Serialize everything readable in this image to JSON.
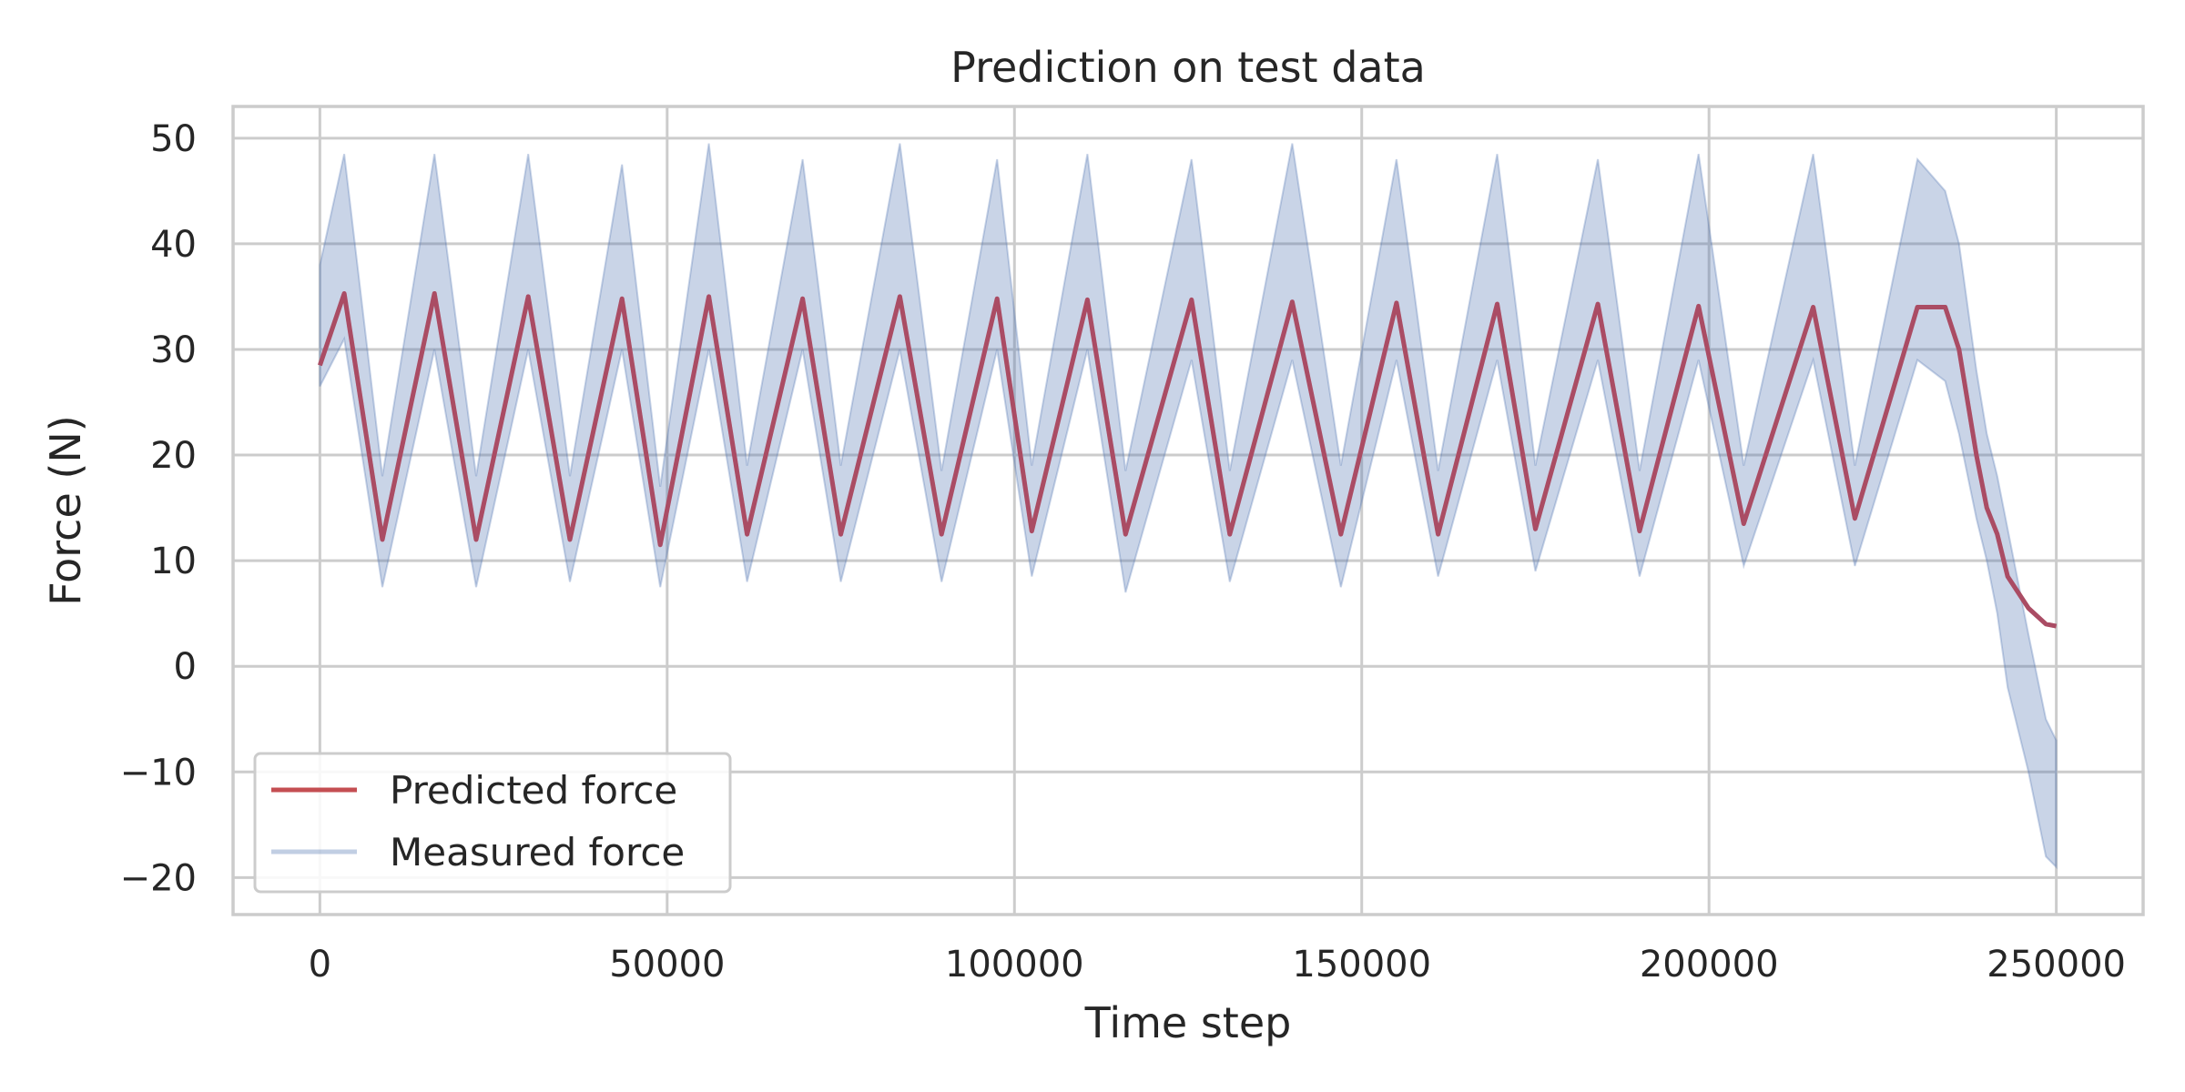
{
  "chart_data": {
    "type": "line",
    "title": "Prediction on test data",
    "xlabel": "Time step",
    "ylabel": "Force (N)",
    "xlim": [
      -12500,
      262500
    ],
    "ylim": [
      -23.5,
      53
    ],
    "xticks": [
      0,
      50000,
      100000,
      150000,
      200000,
      250000
    ],
    "xtick_labels": [
      "0",
      "50000",
      "100000",
      "150000",
      "200000",
      "250000"
    ],
    "yticks": [
      -20,
      -10,
      0,
      10,
      20,
      30,
      40,
      50
    ],
    "ytick_labels": [
      "−20",
      "−10",
      "0",
      "10",
      "20",
      "30",
      "40",
      "50"
    ],
    "grid": true,
    "legend_position": "lower-left",
    "series": [
      {
        "name": "Predicted force",
        "color": "#c44e52",
        "style": "line",
        "x": [
          0,
          3500,
          9000,
          16500,
          22500,
          30000,
          36000,
          43500,
          49000,
          56000,
          61500,
          69500,
          75000,
          83500,
          89500,
          97500,
          102500,
          110500,
          116000,
          125500,
          131000,
          140000,
          147000,
          155000,
          161000,
          169500,
          175000,
          184000,
          190000,
          198500,
          205000,
          215000,
          221000,
          230000,
          234000,
          236000,
          238500,
          240000,
          241500,
          243000,
          246000,
          248500,
          250000
        ],
        "y": [
          28.5,
          35.3,
          12.0,
          35.3,
          12.0,
          35.0,
          12.0,
          34.8,
          11.5,
          35.0,
          12.5,
          34.8,
          12.5,
          35.0,
          12.5,
          34.8,
          12.8,
          34.7,
          12.5,
          34.7,
          12.5,
          34.5,
          12.5,
          34.4,
          12.5,
          34.3,
          13.0,
          34.3,
          12.8,
          34.1,
          13.5,
          34.0,
          14.0,
          34.0,
          34.0,
          30.0,
          20.0,
          15.0,
          12.5,
          8.5,
          5.5,
          4.0,
          3.8
        ]
      },
      {
        "name": "Measured force",
        "color": "#4c72b0",
        "style": "band",
        "x": [
          0,
          3500,
          9000,
          16500,
          22500,
          30000,
          36000,
          43500,
          49000,
          56000,
          61500,
          69500,
          75000,
          83500,
          89500,
          97500,
          102500,
          110500,
          116000,
          125500,
          131000,
          140000,
          147000,
          155000,
          161000,
          169500,
          175000,
          184000,
          190000,
          198500,
          205000,
          215000,
          221000,
          230000,
          234000,
          236000,
          238500,
          240000,
          241500,
          243000,
          246000,
          248500,
          250000
        ],
        "y_low": [
          26.5,
          31,
          7.5,
          30,
          7.5,
          30,
          8,
          30,
          7.5,
          30,
          8,
          30,
          8,
          30,
          8,
          30,
          8.5,
          30,
          7,
          29,
          8,
          29,
          7.5,
          29,
          8.5,
          29,
          9,
          29,
          8.5,
          29,
          9.5,
          29,
          9.5,
          29,
          27,
          22,
          14,
          10,
          5,
          -2,
          -10,
          -18,
          -19
        ],
        "y_high": [
          38,
          48.5,
          18,
          48.5,
          18,
          48.5,
          18,
          47.5,
          17,
          49.5,
          19,
          48,
          19,
          49.5,
          18.5,
          48,
          19,
          48.5,
          18.5,
          48,
          18.5,
          49.5,
          19,
          48,
          18.5,
          48.5,
          19,
          48,
          18.5,
          48.5,
          19,
          48.5,
          19,
          48,
          45,
          40,
          28,
          22,
          18,
          13,
          3,
          -5,
          -7
        ]
      }
    ]
  }
}
